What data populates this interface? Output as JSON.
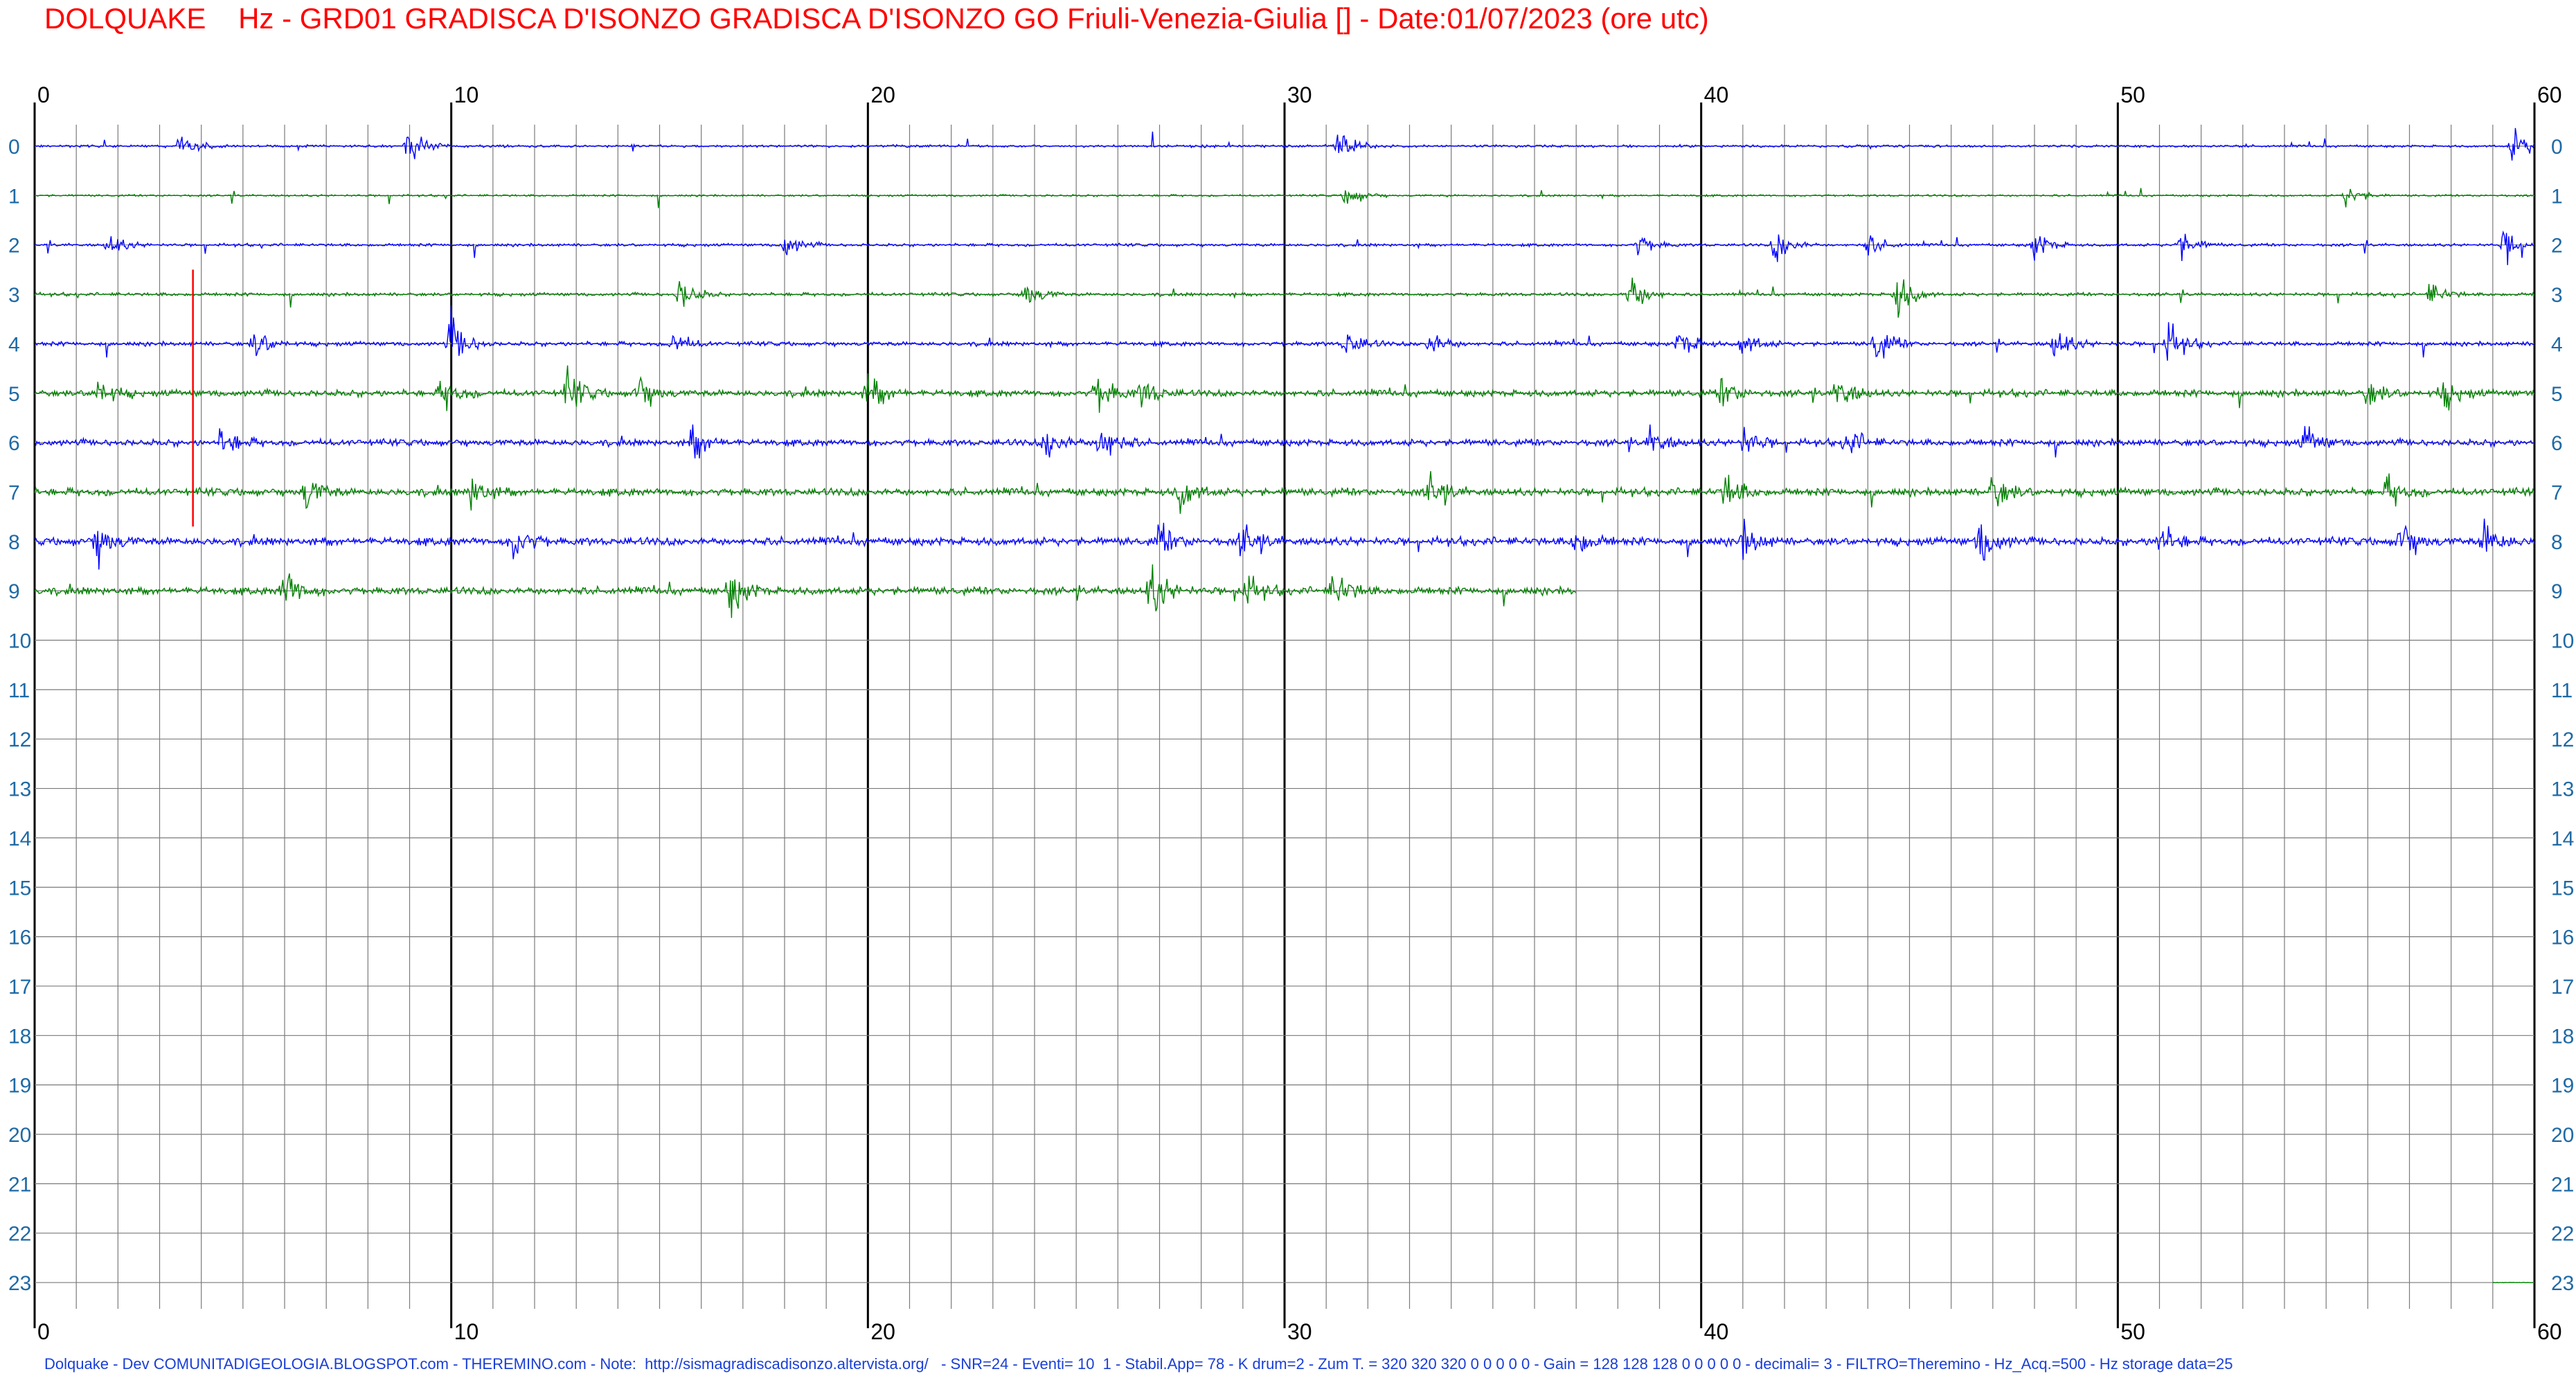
{
  "header": {
    "title": "DOLQUAKE    Hz - GRD01 GRADISCA D'ISONZO GRADISCA D'ISONZO GO Friuli-Venezia-Giulia [] - Date:01/07/2023 (ore utc)"
  },
  "footer": {
    "text": "Dolquake - Dev COMUNITADIGEOLOGIA.BLOGSPOT.com - THEREMINO.com - Note:  http://sismagradiscadisonzo.altervista.org/   - SNR=24 - Eventi= 10  1 - Stabil.App= 78 - K drum=2 - Zum T. = 320 320 320 0 0 0 0 0 - Gain = 128 128 128 0 0 0 0 0 - decimali= 3 - FILTRO=Theremino - Hz_Acq.=500 - Hz storage data=25"
  },
  "colors": {
    "title": "#ff0000",
    "trace_even_hour": "#0000ff",
    "trace_odd_hour": "#008000",
    "marker": "#ff0000",
    "row_labels": "#1f6aa5",
    "footer": "#1a3fd6",
    "grid": "#000000"
  },
  "chart_data": {
    "type": "line",
    "description_type": "seismic helicorder drum",
    "x_ticks": [
      "0",
      "10",
      "20",
      "30",
      "40",
      "50",
      "60"
    ],
    "x_range": [
      0,
      60
    ],
    "x_unit": "minutes",
    "row_labels": [
      "0",
      "1",
      "2",
      "3",
      "4",
      "5",
      "6",
      "7",
      "8",
      "9",
      "10",
      "11",
      "12",
      "13",
      "14",
      "15",
      "16",
      "17",
      "18",
      "19",
      "20",
      "21",
      "22",
      "23"
    ],
    "grid": true,
    "minor_gridlines_per_minute": 1,
    "series": [
      {
        "hour": 0,
        "color": "#0000ff",
        "start_min": 0,
        "end_min": 60,
        "noise": 0.25,
        "events": [
          [
            3.5,
            1.0
          ],
          [
            9.0,
            1.6
          ],
          [
            31.3,
            1.4
          ],
          [
            59.5,
            1.6
          ]
        ]
      },
      {
        "hour": 1,
        "color": "#008000",
        "start_min": 0,
        "end_min": 60,
        "noise": 0.2,
        "events": [
          [
            31.5,
            1.0
          ],
          [
            55.5,
            1.0
          ]
        ]
      },
      {
        "hour": 2,
        "color": "#0000ff",
        "start_min": 0,
        "end_min": 60,
        "noise": 0.3,
        "events": [
          [
            1.8,
            1.0
          ],
          [
            18.0,
            1.2
          ],
          [
            38.5,
            1.0
          ],
          [
            41.8,
            1.6
          ],
          [
            44.0,
            1.0
          ],
          [
            48.0,
            1.3
          ],
          [
            51.5,
            1.3
          ],
          [
            59.3,
            1.7
          ]
        ]
      },
      {
        "hour": 3,
        "color": "#008000",
        "start_min": 0,
        "end_min": 60,
        "noise": 0.35,
        "events": [
          [
            15.5,
            1.5
          ],
          [
            23.8,
            1.3
          ],
          [
            38.3,
            2.0
          ],
          [
            44.7,
            2.2
          ],
          [
            57.5,
            1.0
          ]
        ]
      },
      {
        "hour": 4,
        "color": "#0000ff",
        "start_min": 0,
        "end_min": 60,
        "noise": 0.45,
        "events": [
          [
            5.3,
            1.4
          ],
          [
            10.0,
            2.4
          ],
          [
            15.3,
            1.2
          ],
          [
            31.5,
            1.3
          ],
          [
            33.5,
            1.2
          ],
          [
            39.5,
            1.3
          ],
          [
            41.0,
            1.2
          ],
          [
            44.2,
            1.7
          ],
          [
            48.5,
            1.5
          ],
          [
            51.2,
            1.8
          ]
        ]
      },
      {
        "hour": 5,
        "color": "#008000",
        "start_min": 0,
        "end_min": 60,
        "noise": 0.7,
        "events": [
          [
            1.5,
            1.4
          ],
          [
            9.8,
            1.4
          ],
          [
            12.8,
            1.8
          ],
          [
            14.5,
            1.6
          ],
          [
            20.0,
            1.8
          ],
          [
            25.5,
            1.8
          ],
          [
            26.6,
            1.3
          ],
          [
            40.5,
            1.3
          ],
          [
            43.3,
            1.6
          ],
          [
            56.0,
            1.2
          ],
          [
            57.8,
            1.3
          ]
        ]
      },
      {
        "hour": 6,
        "color": "#0000ff",
        "start_min": 0,
        "end_min": 60,
        "noise": 0.7,
        "events": [
          [
            4.5,
            1.3
          ],
          [
            15.8,
            1.5
          ],
          [
            24.3,
            1.5
          ],
          [
            25.6,
            2.2
          ],
          [
            38.8,
            1.3
          ],
          [
            41.0,
            1.3
          ],
          [
            43.5,
            1.3
          ],
          [
            54.5,
            1.3
          ]
        ]
      },
      {
        "hour": 7,
        "color": "#008000",
        "start_min": 0,
        "end_min": 60,
        "noise": 0.8,
        "events": [
          [
            6.5,
            1.6
          ],
          [
            10.5,
            1.6
          ],
          [
            27.5,
            1.6
          ],
          [
            33.5,
            1.5
          ],
          [
            40.6,
            1.6
          ],
          [
            47.0,
            1.7
          ],
          [
            56.5,
            1.3
          ]
        ]
      },
      {
        "hour": 8,
        "color": "#0000ff",
        "start_min": 0,
        "end_min": 60,
        "noise": 0.85,
        "events": [
          [
            1.5,
            1.8
          ],
          [
            11.5,
            1.8
          ],
          [
            27.0,
            1.4
          ],
          [
            29.0,
            1.5
          ],
          [
            37.0,
            1.3
          ],
          [
            41.0,
            1.5
          ],
          [
            46.7,
            2.0
          ],
          [
            51.0,
            1.6
          ],
          [
            56.8,
            1.8
          ],
          [
            58.8,
            1.7
          ]
        ]
      },
      {
        "hour": 9,
        "color": "#008000",
        "start_min": 0,
        "end_min": 37,
        "noise": 0.8,
        "events": [
          [
            6.0,
            2.0
          ],
          [
            16.7,
            2.0
          ],
          [
            26.8,
            2.3
          ],
          [
            29.0,
            1.6
          ],
          [
            31.2,
            1.7
          ]
        ]
      },
      {
        "hour": 23,
        "color": "#008000",
        "start_min": 59,
        "end_min": 60,
        "noise": 0.05,
        "events": []
      }
    ],
    "markers": [
      {
        "hour_start": 2.5,
        "hour_end": 7.7,
        "minute": 3.8,
        "color": "#ff0000"
      }
    ]
  }
}
